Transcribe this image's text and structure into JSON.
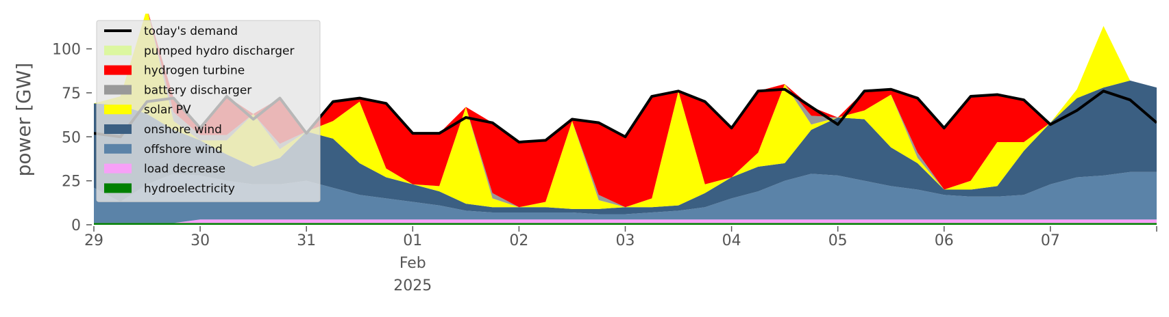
{
  "chart_data": {
    "type": "stacked_area",
    "y_label": "power [GW]",
    "ylim": [
      0,
      120
    ],
    "yticks": [
      0,
      25,
      50,
      75,
      100
    ],
    "xlim": [
      "2025-01-29T00:00",
      "2025-02-08T00:00"
    ],
    "xticks": [
      {
        "value": "2025-01-29T00:00",
        "label": "29"
      },
      {
        "value": "2025-01-30T00:00",
        "label": "30"
      },
      {
        "value": "2025-01-31T00:00",
        "label": "31"
      },
      {
        "value": "2025-02-01T00:00",
        "label": "01\nFeb\n2025"
      },
      {
        "value": "2025-02-02T00:00",
        "label": "02"
      },
      {
        "value": "2025-02-03T00:00",
        "label": "03"
      },
      {
        "value": "2025-02-04T00:00",
        "label": "04"
      },
      {
        "value": "2025-02-05T00:00",
        "label": "05"
      },
      {
        "value": "2025-02-06T00:00",
        "label": "06"
      },
      {
        "value": "2025-02-07T00:00",
        "label": "07"
      }
    ],
    "legend": "upper left",
    "x": [
      "2025-01-29T00:00",
      "2025-01-29T06:00",
      "2025-01-29T12:00",
      "2025-01-29T18:00",
      "2025-01-30T00:00",
      "2025-01-30T06:00",
      "2025-01-30T12:00",
      "2025-01-30T18:00",
      "2025-01-31T00:00",
      "2025-01-31T06:00",
      "2025-01-31T12:00",
      "2025-01-31T18:00",
      "2025-02-01T00:00",
      "2025-02-01T06:00",
      "2025-02-01T12:00",
      "2025-02-01T18:00",
      "2025-02-02T00:00",
      "2025-02-02T06:00",
      "2025-02-02T12:00",
      "2025-02-02T18:00",
      "2025-02-03T00:00",
      "2025-02-03T06:00",
      "2025-02-03T12:00",
      "2025-02-03T18:00",
      "2025-02-04T00:00",
      "2025-02-04T06:00",
      "2025-02-04T12:00",
      "2025-02-04T18:00",
      "2025-02-05T00:00",
      "2025-02-05T06:00",
      "2025-02-05T12:00",
      "2025-02-05T18:00",
      "2025-02-06T00:00",
      "2025-02-06T06:00",
      "2025-02-06T12:00",
      "2025-02-06T18:00",
      "2025-02-07T00:00",
      "2025-02-07T06:00",
      "2025-02-07T12:00",
      "2025-02-07T18:00",
      "2025-02-08T00:00"
    ],
    "series": [
      {
        "name": "today's demand",
        "type": "line",
        "color": "#000000",
        "values": [
          52,
          50,
          70,
          72,
          55,
          73,
          60,
          72,
          52,
          70,
          72,
          69,
          52,
          52,
          61,
          58,
          47,
          48,
          60,
          58,
          50,
          73,
          76,
          70,
          55,
          76,
          77,
          67,
          57,
          76,
          77,
          72,
          55,
          73,
          74,
          71,
          57,
          65,
          76,
          71,
          58
        ]
      },
      {
        "name": "pumped hydro discharger",
        "color": "#dcf7a0",
        "values": [
          0,
          0,
          0,
          0,
          0,
          0,
          0,
          0,
          0,
          0,
          0,
          0,
          0,
          0,
          0,
          0,
          0,
          0,
          0,
          0,
          0,
          0,
          0,
          0,
          0,
          0,
          0,
          0,
          0,
          0,
          0,
          0,
          0,
          0,
          0,
          0,
          0,
          0,
          0,
          0,
          0
        ]
      },
      {
        "name": "hydrogen turbine",
        "color": "#ff0000",
        "values": [
          0,
          0,
          0,
          8,
          4,
          22,
          0,
          26,
          0,
          11,
          2,
          37,
          29,
          30,
          0,
          40,
          37,
          35,
          1,
          41,
          40,
          58,
          0,
          47,
          28,
          35,
          0,
          5,
          0,
          11,
          3,
          31,
          35,
          48,
          27,
          24,
          0,
          0,
          0,
          0,
          0
        ]
      },
      {
        "name": "battery discharger",
        "color": "#999999",
        "values": [
          0,
          0,
          0,
          5,
          3,
          3,
          0,
          3,
          0,
          0,
          0,
          0,
          0,
          0,
          0,
          3,
          0,
          0,
          0,
          3,
          0,
          0,
          0,
          0,
          0,
          0,
          0,
          5,
          0,
          0,
          0,
          3,
          0,
          0,
          0,
          0,
          0,
          0,
          0,
          0,
          0
        ]
      },
      {
        "name": "solar PV",
        "color": "#ffff00",
        "values": [
          0,
          5,
          60,
          5,
          0,
          8,
          30,
          5,
          0,
          10,
          35,
          5,
          0,
          3,
          55,
          5,
          0,
          3,
          50,
          5,
          0,
          5,
          65,
          5,
          0,
          8,
          45,
          3,
          0,
          5,
          30,
          3,
          0,
          5,
          25,
          5,
          0,
          5,
          35,
          0,
          0
        ]
      },
      {
        "name": "onshore wind",
        "color": "#3b5f82",
        "values": [
          48,
          55,
          40,
          25,
          20,
          15,
          10,
          15,
          28,
          28,
          18,
          12,
          10,
          8,
          4,
          3,
          3,
          3,
          2,
          3,
          4,
          3,
          3,
          8,
          12,
          14,
          10,
          25,
          33,
          35,
          22,
          15,
          3,
          4,
          6,
          25,
          35,
          45,
          50,
          52,
          48
        ]
      },
      {
        "name": "offshore wind",
        "color": "#5b83a8",
        "values": [
          20,
          12,
          22,
          28,
          25,
          22,
          20,
          20,
          22,
          18,
          14,
          12,
          10,
          8,
          5,
          4,
          4,
          4,
          4,
          3,
          3,
          4,
          5,
          7,
          12,
          16,
          22,
          26,
          25,
          22,
          19,
          17,
          14,
          13,
          13,
          14,
          20,
          24,
          25,
          27,
          27
        ]
      },
      {
        "name": "load decrease",
        "color": "#f7a0f7",
        "values": [
          0,
          0,
          0,
          0,
          2,
          2,
          2,
          2,
          2,
          2,
          2,
          2,
          2,
          2,
          2,
          2,
          2,
          2,
          2,
          2,
          2,
          2,
          2,
          2,
          2,
          2,
          2,
          2,
          2,
          2,
          2,
          2,
          2,
          2,
          2,
          2,
          2,
          2,
          2,
          2,
          2
        ]
      },
      {
        "name": "hydroelectricity",
        "color": "#008000",
        "values": [
          1,
          1,
          1,
          1,
          1,
          1,
          1,
          1,
          1,
          1,
          1,
          1,
          1,
          1,
          1,
          1,
          1,
          1,
          1,
          1,
          1,
          1,
          1,
          1,
          1,
          1,
          1,
          1,
          1,
          1,
          1,
          1,
          1,
          1,
          1,
          1,
          1,
          1,
          1,
          1,
          1
        ]
      }
    ]
  }
}
